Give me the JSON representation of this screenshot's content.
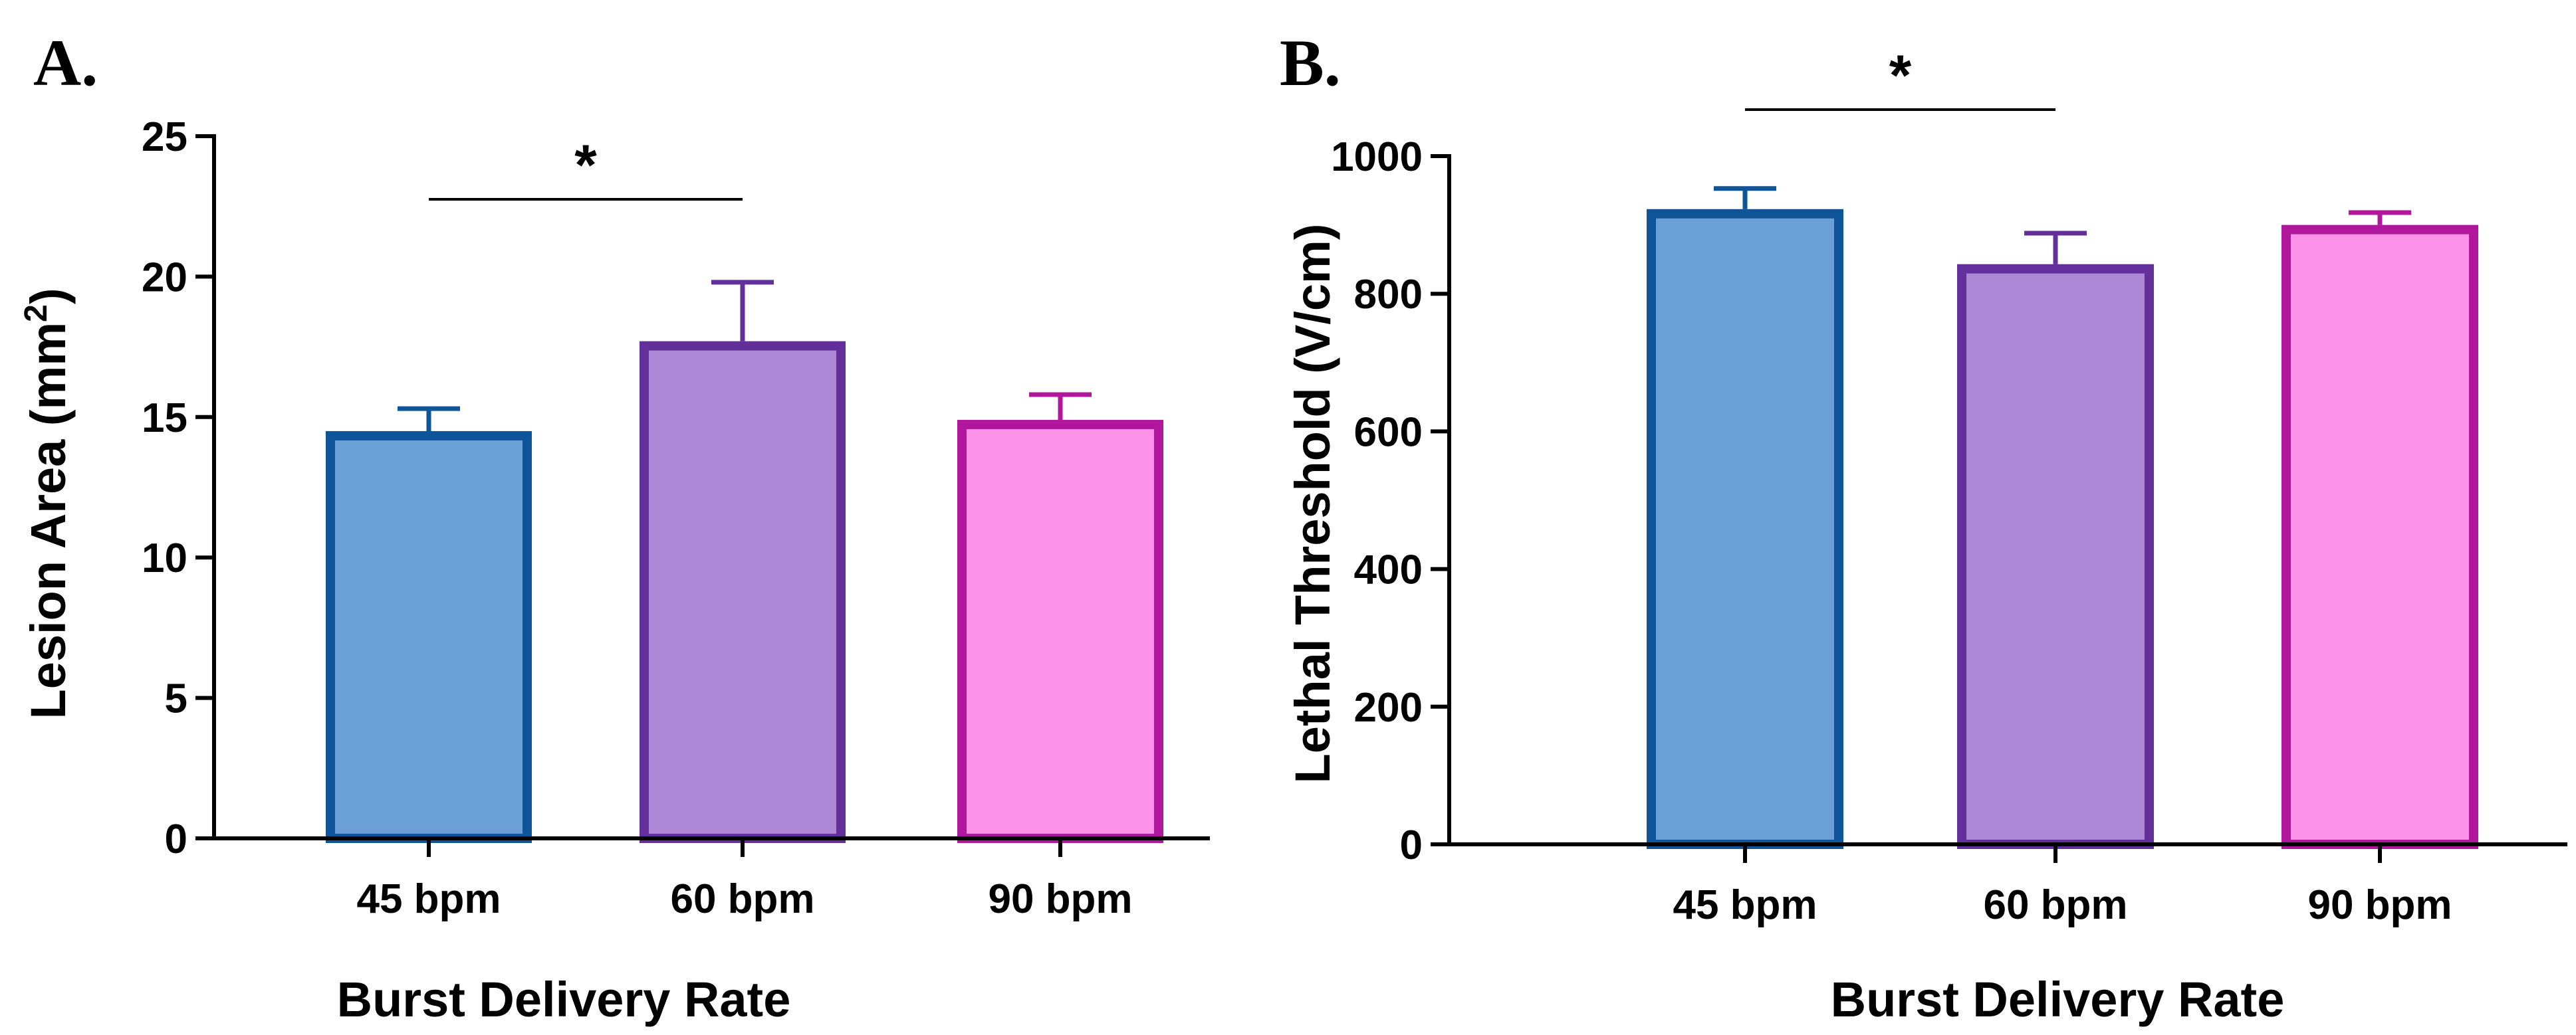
{
  "chart_data": [
    {
      "panel": "A.",
      "type": "bar",
      "categories": [
        "45 bpm",
        "60 bpm",
        "90 bpm"
      ],
      "values": [
        14.5,
        17.7,
        14.9
      ],
      "errors": [
        0.8,
        2.1,
        0.9
      ],
      "xlabel": "Burst Delivery Rate",
      "ylabel": "Lesion Area (mm",
      "ylabel_sup": "2",
      "ylabel_close": ")",
      "ylim": [
        0,
        25
      ],
      "yticks": [
        0,
        5,
        10,
        15,
        20,
        25
      ],
      "grid": false,
      "fill_colors": [
        "#6ba0d6",
        "#ad88d6",
        "#fd92e9"
      ],
      "edge_colors": [
        "#0f5499",
        "#622f9b",
        "#b0179d"
      ],
      "significance": {
        "between": [
          0,
          1
        ],
        "label": "*"
      }
    },
    {
      "panel": "B.",
      "type": "bar",
      "categories": [
        "45 bpm",
        "60 bpm",
        "90 bpm"
      ],
      "values": [
        923,
        843,
        900
      ],
      "errors": [
        30,
        45,
        18
      ],
      "xlabel": "Burst Delivery Rate",
      "ylabel": "Lethal Threshold (V/cm)",
      "ylim": [
        0,
        1000
      ],
      "yticks": [
        0,
        200,
        400,
        600,
        800,
        1000
      ],
      "grid": false,
      "fill_colors": [
        "#6ba0d6",
        "#ad88d6",
        "#fd92e9"
      ],
      "edge_colors": [
        "#0f5499",
        "#622f9b",
        "#b0179d"
      ],
      "significance": {
        "between": [
          0,
          1
        ],
        "label": "*"
      }
    }
  ]
}
